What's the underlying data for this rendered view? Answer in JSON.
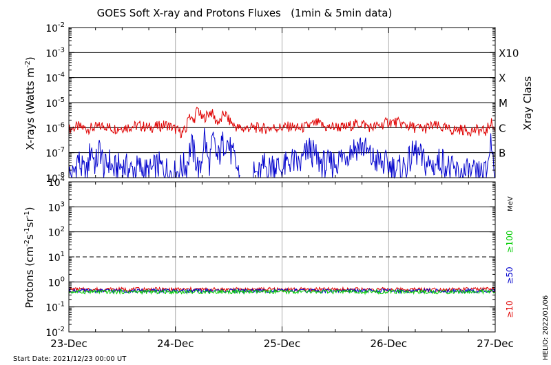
{
  "chart_data": {
    "title": "GOES Soft X-ray and Protons Fluxes   (1min & 5min data)",
    "start_date": "Start Date: 2021/12/23 00:00 UT",
    "helio_label": "HELIO: 2022/01/06",
    "x_axis": {
      "range": [
        "2021-12-23",
        "2021-12-27"
      ],
      "ticks": [
        "2021-12-23",
        "2021-12-24",
        "2021-12-25",
        "2021-12-26",
        "2021-12-27"
      ],
      "tick_labels": [
        "23-Dec",
        "24-Dec",
        "25-Dec",
        "26-Dec",
        "27-Dec"
      ],
      "vertical_grid": true
    },
    "panels": [
      {
        "name": "xray",
        "type": "line",
        "ylabel": "X-rays (Watts m",
        "ylabel_exp": "-2",
        "ylabel_end": ")",
        "yscale": "log",
        "ylim": [
          1e-08,
          0.01
        ],
        "y_ticks": [
          {
            "base": "10",
            "exp": "-8"
          },
          {
            "base": "10",
            "exp": "-7"
          },
          {
            "base": "10",
            "exp": "-6"
          },
          {
            "base": "10",
            "exp": "-5"
          },
          {
            "base": "10",
            "exp": "-4"
          },
          {
            "base": "10",
            "exp": "-3"
          },
          {
            "base": "10",
            "exp": "-2"
          }
        ],
        "horizontal_grid": [
          1e-07,
          1e-06,
          1e-05,
          0.0001,
          0.001
        ],
        "right_axis_title": "Xray Class",
        "class_labels": [
          {
            "label": "B",
            "value": 1e-07
          },
          {
            "label": "C",
            "value": 1e-06
          },
          {
            "label": "M",
            "value": 1e-05
          },
          {
            "label": "X",
            "value": 0.0001
          },
          {
            "label": "X10",
            "value": 0.001
          }
        ],
        "series": [
          {
            "color": "#e00000",
            "x": [
              "2021-12-23 00:00",
              "2021-12-23 02:00",
              "2021-12-23 04:00",
              "2021-12-23 06:00",
              "2021-12-23 08:00",
              "2021-12-23 10:00",
              "2021-12-23 12:00",
              "2021-12-23 14:00",
              "2021-12-23 16:00",
              "2021-12-23 18:00",
              "2021-12-23 20:00",
              "2021-12-23 22:00",
              "2021-12-24 00:00",
              "2021-12-24 01:30",
              "2021-12-24 02:30",
              "2021-12-24 03:00",
              "2021-12-24 04:00",
              "2021-12-24 05:00",
              "2021-12-24 06:00",
              "2021-12-24 07:00",
              "2021-12-24 08:00",
              "2021-12-24 09:00",
              "2021-12-24 10:00",
              "2021-12-24 11:00",
              "2021-12-24 12:00",
              "2021-12-24 13:00",
              "2021-12-24 14:00",
              "2021-12-24 15:00",
              "2021-12-24 16:00",
              "2021-12-24 17:00",
              "2021-12-24 18:00",
              "2021-12-24 20:00",
              "2021-12-24 22:00",
              "2021-12-25 00:00",
              "2021-12-25 02:00",
              "2021-12-25 04:00",
              "2021-12-25 06:00",
              "2021-12-25 08:00",
              "2021-12-25 10:00",
              "2021-12-25 12:00",
              "2021-12-25 14:00",
              "2021-12-25 16:00",
              "2021-12-25 18:00",
              "2021-12-25 20:00",
              "2021-12-25 22:00",
              "2021-12-26 00:00",
              "2021-12-26 02:00",
              "2021-12-26 04:00",
              "2021-12-26 06:00",
              "2021-12-26 08:00",
              "2021-12-26 10:00",
              "2021-12-26 12:00",
              "2021-12-26 14:00",
              "2021-12-26 16:00",
              "2021-12-26 18:00",
              "2021-12-26 20:00",
              "2021-12-26 22:00",
              "2021-12-26 23:00",
              "2021-12-27 00:00"
            ],
            "y": [
              8.5e-07,
              1.1e-06,
              9e-07,
              1e-06,
              1.2e-06,
              9e-07,
              1e-06,
              1.1e-06,
              1.2e-06,
              1e-06,
              1.1e-06,
              1.3e-06,
              8.5e-07,
              6e-07,
              9e-07,
              4e-06,
              1.6e-06,
              6e-06,
              2.2e-06,
              3e-06,
              4.5e-06,
              2e-06,
              1.6e-06,
              4e-06,
              2e-06,
              1.3e-06,
              1e-06,
              9e-07,
              9.5e-07,
              1e-06,
              1e-06,
              9e-07,
              1e-06,
              1e-06,
              1.1e-06,
              9e-07,
              1.2e-06,
              1.5e-06,
              1e-06,
              1.1e-06,
              1e-06,
              1.3e-06,
              1.5e-06,
              1e-06,
              1.2e-06,
              1.7e-06,
              1.6e-06,
              1.2e-06,
              1e-06,
              9e-07,
              1.2e-06,
              1e-06,
              8e-07,
              8.5e-07,
              7.5e-07,
              8e-07,
              7e-07,
              1.8e-06,
              7e-07
            ]
          },
          {
            "color": "#0000cc",
            "x": [
              "2021-12-23 00:00",
              "2021-12-23 01:00",
              "2021-12-23 02:00",
              "2021-12-23 03:00",
              "2021-12-23 04:00",
              "2021-12-23 05:00",
              "2021-12-23 06:00",
              "2021-12-23 07:00",
              "2021-12-23 08:00",
              "2021-12-23 09:00",
              "2021-12-23 10:00",
              "2021-12-23 12:00",
              "2021-12-23 14:00",
              "2021-12-23 16:00",
              "2021-12-23 18:00",
              "2021-12-23 20:00",
              "2021-12-23 22:00",
              "2021-12-24 00:00",
              "2021-12-24 01:00",
              "2021-12-24 02:30",
              "2021-12-24 03:30",
              "2021-12-24 04:30",
              "2021-12-24 05:30",
              "2021-12-24 06:30",
              "2021-12-24 07:30",
              "2021-12-24 08:30",
              "2021-12-24 09:30",
              "2021-12-24 10:30",
              "2021-12-24 11:30",
              "2021-12-24 12:30",
              "2021-12-24 13:30",
              "2021-12-24 14:30"
            ],
            "y": [
              1.5e-08,
              1.2e-08,
              6e-08,
              2e-08,
              1.3e-08,
              1.8e-07,
              3e-08,
              1.6e-07,
              2e-08,
              5e-08,
              2e-08,
              3e-08,
              2e-08,
              2.5e-08,
              1.5e-08,
              3e-08,
              2e-08,
              1.3e-08,
              2.5e-08,
              3e-08,
              2.2e-07,
              6e-08,
              1.4e-08,
              5e-07,
              3e-08,
              3e-07,
              5e-08,
              2e-07,
              3.5e-07,
              1e-07,
              4e-08,
              1e-08
            ]
          },
          {
            "color": "#0000cc",
            "x": [
              "2021-12-24 17:00",
              "2021-12-24 18:00",
              "2021-12-24 19:00",
              "2021-12-24 20:00",
              "2021-12-24 21:00",
              "2021-12-24 22:00",
              "2021-12-25 00:00",
              "2021-12-25 02:00",
              "2021-12-25 04:00",
              "2021-12-25 06:00",
              "2021-12-25 08:00",
              "2021-12-25 10:00",
              "2021-12-25 12:00",
              "2021-12-25 14:00",
              "2021-12-25 16:00",
              "2021-12-25 18:00",
              "2021-12-25 20:00",
              "2021-12-25 22:00",
              "2021-12-26 00:00",
              "2021-12-26 02:00",
              "2021-12-26 04:00",
              "2021-12-26 06:00",
              "2021-12-26 08:00",
              "2021-12-26 10:00",
              "2021-12-26 12:00",
              "2021-12-26 14:00",
              "2021-12-26 16:00",
              "2021-12-26 18:00",
              "2021-12-26 20:00",
              "2021-12-26 22:00",
              "2021-12-26 23:00",
              "2021-12-27 00:00"
            ],
            "y": [
              1e-08,
              1.5e-08,
              1.3e-08,
              3e-08,
              2e-08,
              4e-08,
              2e-08,
              5e-08,
              3e-08,
              1.5e-07,
              5e-08,
              3e-08,
              4e-08,
              8e-08,
              1.5e-07,
              2e-07,
              6e-08,
              4e-08,
              3e-08,
              2e-08,
              3e-08,
              1.2e-07,
              4e-08,
              3e-08,
              5e-08,
              2e-08,
              1.5e-08,
              1.5e-08,
              1.2e-08,
              1.5e-08,
              3e-07,
              2e-08
            ]
          }
        ]
      },
      {
        "name": "protons",
        "type": "line",
        "ylabel": "Protons (cm",
        "ylabel_parts": [
          {
            "text": "-2",
            "sup": true
          },
          {
            "text": "s",
            "sup": false
          },
          {
            "text": "-1",
            "sup": true
          },
          {
            "text": "sr",
            "sup": false
          },
          {
            "text": "-1",
            "sup": true
          },
          {
            "text": ")",
            "sup": false
          }
        ],
        "yscale": "log",
        "ylim": [
          0.01,
          10000
        ],
        "y_ticks": [
          {
            "base": "10",
            "exp": "-2"
          },
          {
            "base": "10",
            "exp": "-1"
          },
          {
            "base": "10",
            "exp": "0"
          },
          {
            "base": "10",
            "exp": "1"
          },
          {
            "base": "10",
            "exp": "2"
          },
          {
            "base": "10",
            "exp": "3"
          },
          {
            "base": "10",
            "exp": "4"
          }
        ],
        "horizontal_grid": [
          0.1,
          1,
          100,
          1000
        ],
        "dashed_grid": [
          10
        ],
        "right_labels": [
          {
            "text": "MeV",
            "color": "#000000"
          },
          {
            "text": "≥100",
            "color": "#00cc00"
          },
          {
            "text": "≥50",
            "color": "#0000cc"
          },
          {
            "text": "≥10",
            "color": "#e00000"
          }
        ],
        "series": [
          {
            "name": "≥10",
            "color": "#e00000",
            "x": [
              "2021-12-23",
              "2021-12-27"
            ],
            "y": [
              0.5,
              0.5
            ]
          },
          {
            "name": "≥50",
            "color": "#0000cc",
            "x": [
              "2021-12-23",
              "2021-12-27"
            ],
            "y": [
              0.44,
              0.44
            ]
          },
          {
            "name": "≥100",
            "color": "#00cc00",
            "x": [
              "2021-12-23",
              "2021-12-27"
            ],
            "y": [
              0.4,
              0.4
            ]
          }
        ]
      }
    ]
  }
}
